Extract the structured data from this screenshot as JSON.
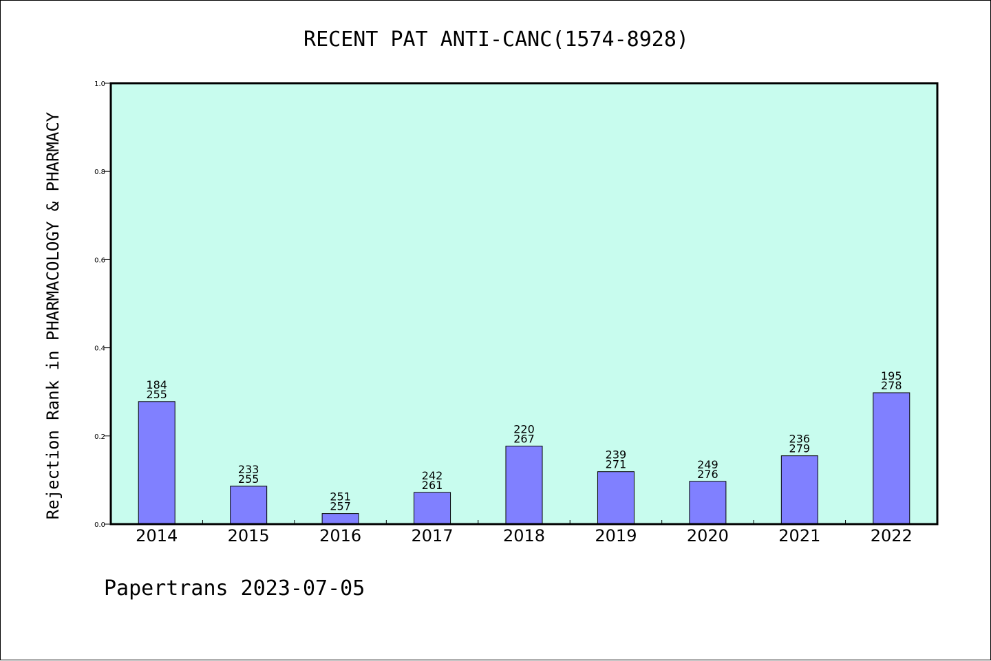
{
  "chart_data": {
    "type": "bar",
    "title": "RECENT PAT ANTI-CANC(1574-8928)",
    "ylabel": "Rejection Rank in PHARMACOLOGY & PHARMACY",
    "xlabel": "",
    "ylim": [
      0,
      1.0
    ],
    "yticks": [
      "0.0",
      "0.2",
      "0.4",
      "0.6",
      "0.8",
      "1.0"
    ],
    "grid": false,
    "categories": [
      "2014",
      "2015",
      "2016",
      "2017",
      "2018",
      "2019",
      "2020",
      "2021",
      "2022"
    ],
    "values": [
      0.278,
      0.086,
      0.024,
      0.072,
      0.177,
      0.119,
      0.097,
      0.155,
      0.298
    ],
    "labels_top": [
      "184",
      "233",
      "251",
      "242",
      "220",
      "239",
      "249",
      "236",
      "195"
    ],
    "labels_bottom": [
      "255",
      "255",
      "257",
      "261",
      "267",
      "271",
      "276",
      "279",
      "278"
    ],
    "colors": {
      "plot_background": "#c8fcee",
      "bar_fill": "#8080ff",
      "bar_edge": "#000000"
    }
  },
  "footer": {
    "text": "Papertrans 2023-07-05"
  }
}
